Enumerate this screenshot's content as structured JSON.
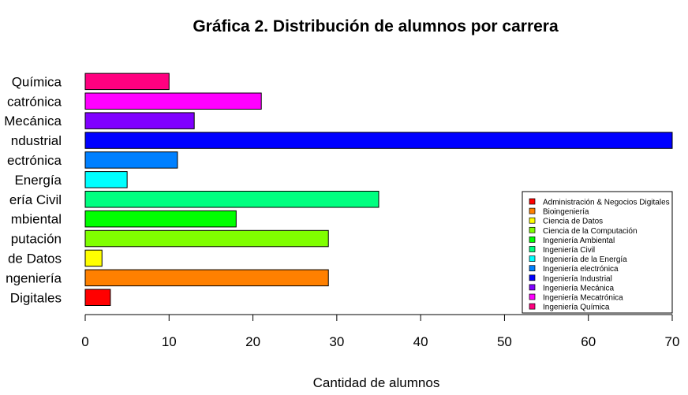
{
  "chart_data": {
    "type": "bar",
    "orientation": "horizontal",
    "title": "Gráfica 2. Distribución de alumnos por carrera",
    "xlabel": "Cantidad de alumnos",
    "ylabel": "",
    "xlim": [
      0,
      70
    ],
    "xticks": [
      "0",
      "10",
      "20",
      "30",
      "40",
      "50",
      "60",
      "70"
    ],
    "categories": [
      "Administración & Negocios Digitales",
      "Bioingeniería",
      "Ciencia de Datos",
      "Ciencia de la Computación",
      "Ingeniería Ambiental",
      "Ingeniería Civil",
      "Ingeniería de la Energía",
      "Ingeniería electrónica",
      "Ingeniería Industrial",
      "Ingeniería Mecánica",
      "Ingeniería Mecatrónica",
      "Ingeniería Química"
    ],
    "visible_category_labels": [
      "Digitales",
      "ngeniería",
      "de Datos",
      "putación",
      "mbiental",
      "ería Civil",
      "Energía",
      "ectrónica",
      "ndustrial",
      "Mecánica",
      "catrónica",
      "Química"
    ],
    "values": [
      3,
      29,
      2,
      29,
      18,
      35,
      5,
      11,
      70,
      13,
      21,
      10
    ],
    "colors": [
      "#ff0000",
      "#ff8000",
      "#ffff00",
      "#80ff00",
      "#00ff00",
      "#00ff80",
      "#00ffff",
      "#0080ff",
      "#0000ff",
      "#8000ff",
      "#ff00ff",
      "#ff0080"
    ],
    "grid": false,
    "legend": {
      "placement": "bottom-right",
      "entries": [
        "Administración & Negocios Digitales",
        "Bioingeniería",
        "Ciencia de Datos",
        "Ciencia de la Computación",
        "Ingeniería Ambiental",
        "Ingeniería Civil",
        "Ingeniería de la Energía",
        "Ingeniería electrónica",
        "Ingeniería Industrial",
        "Ingeniería Mecánica",
        "Ingeniería Mecatrónica",
        "Ingeniería Química"
      ]
    }
  }
}
